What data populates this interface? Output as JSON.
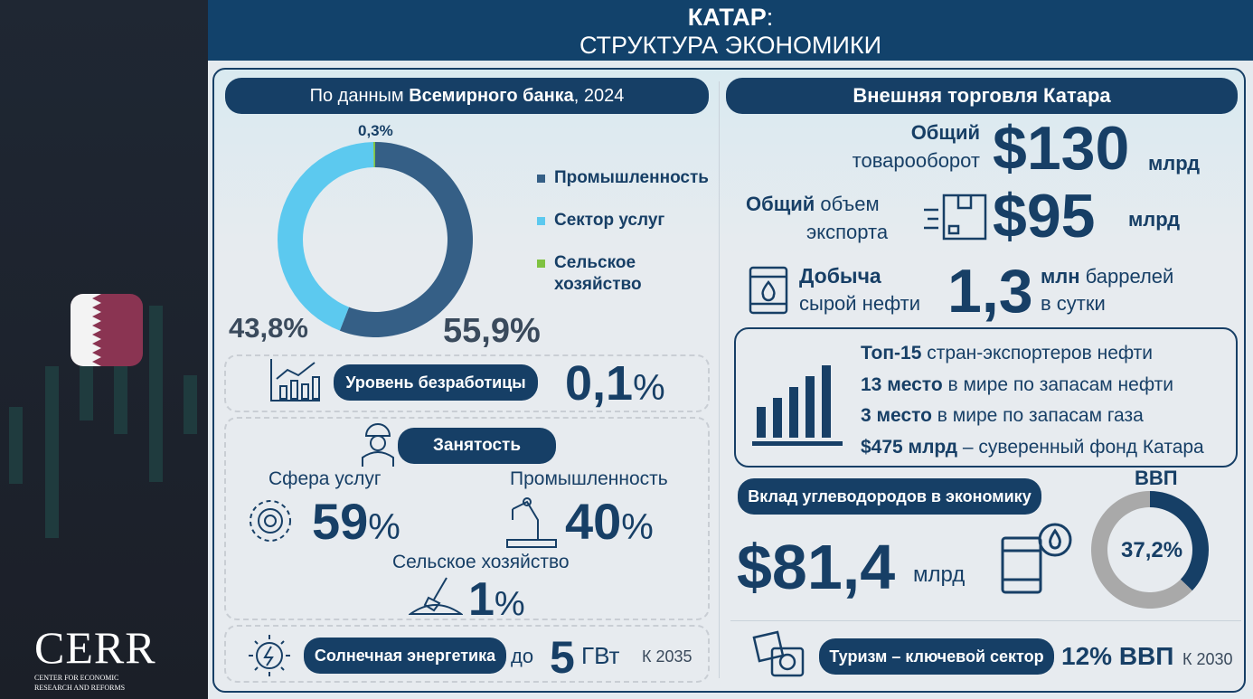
{
  "header": {
    "title_bold": "КАТАР",
    "title_colon": ":",
    "subtitle": "СТРУКТУРА ЭКОНОМИКИ"
  },
  "logo": {
    "name": "CERR",
    "tag1": "CENTER FOR ECONOMIC",
    "tag2": "RESEARCH AND REFORMS"
  },
  "left": {
    "source_pre": "По данным ",
    "source_bold": "Всемирного банка",
    "source_post": ", 2024",
    "chart_data": {
      "type": "pie",
      "title": "Структура экономики",
      "series": [
        {
          "name": "Промышленность",
          "value": 55.9,
          "label": "55,9%",
          "color": "#355f86"
        },
        {
          "name": "Сектор услуг",
          "value": 43.8,
          "label": "43,8%",
          "color": "#5cc9ef"
        },
        {
          "name": "Сельское хозяйство",
          "value": 0.3,
          "label": "0,3%",
          "color": "#7fc241"
        }
      ],
      "legend": "right"
    },
    "legend": [
      "Промышленность",
      "Сектор услуг",
      "Сельское",
      "хозяйство"
    ],
    "unemployment": {
      "label": "Уровень безработицы",
      "value": "0,1",
      "unit": "%"
    },
    "employment": {
      "title": "Занятость",
      "services": {
        "label": "Сфера услуг",
        "value": "59",
        "unit": "%"
      },
      "industry": {
        "label": "Промышленность",
        "value": "40",
        "unit": "%"
      },
      "agri": {
        "label": "Сельское хозяйство",
        "value": "1",
        "unit": "%"
      }
    },
    "solar": {
      "label": "Солнечная энергетика",
      "pre": "до",
      "value": "5",
      "unit": "ГВт",
      "year": "К 2035"
    }
  },
  "right": {
    "title": "Внешняя торговля Катара",
    "turnover": {
      "l1": "Общий",
      "l2": "товарооборот",
      "value": "$130",
      "unit": "млрд"
    },
    "export": {
      "l1b": "Общий",
      "l1": " объем",
      "l2": "экспорта",
      "value": "$95",
      "unit": "млрд"
    },
    "oil": {
      "l1": "Добыча",
      "l2": "сырой нефти",
      "value": "1,3",
      "u1b": "млн",
      "u1": " баррелей",
      "u2": "в сутки"
    },
    "facts": [
      {
        "b": "Топ-15",
        "t": " стран-экспортеров нефти"
      },
      {
        "b": "13 место",
        "t": " в мире по запасам нефти"
      },
      {
        "b": "3 место",
        "t": " в мире по запасам газа"
      },
      {
        "b": "$475 млрд",
        "t": " – суверенный фонд Катара"
      }
    ],
    "hydro": {
      "label": "Вклад углеводородов в экономику",
      "value": "$81,4",
      "unit": "млрд",
      "gdp_label": "ВВП",
      "share": 37.2,
      "share_label": "37,2%",
      "color": "#163f66",
      "rest_color": "#a9a9a9"
    },
    "tourism": {
      "label": "Туризм – ключевой сектор",
      "value": "12%",
      "unit": "ВВП",
      "year": "К 2030"
    }
  }
}
